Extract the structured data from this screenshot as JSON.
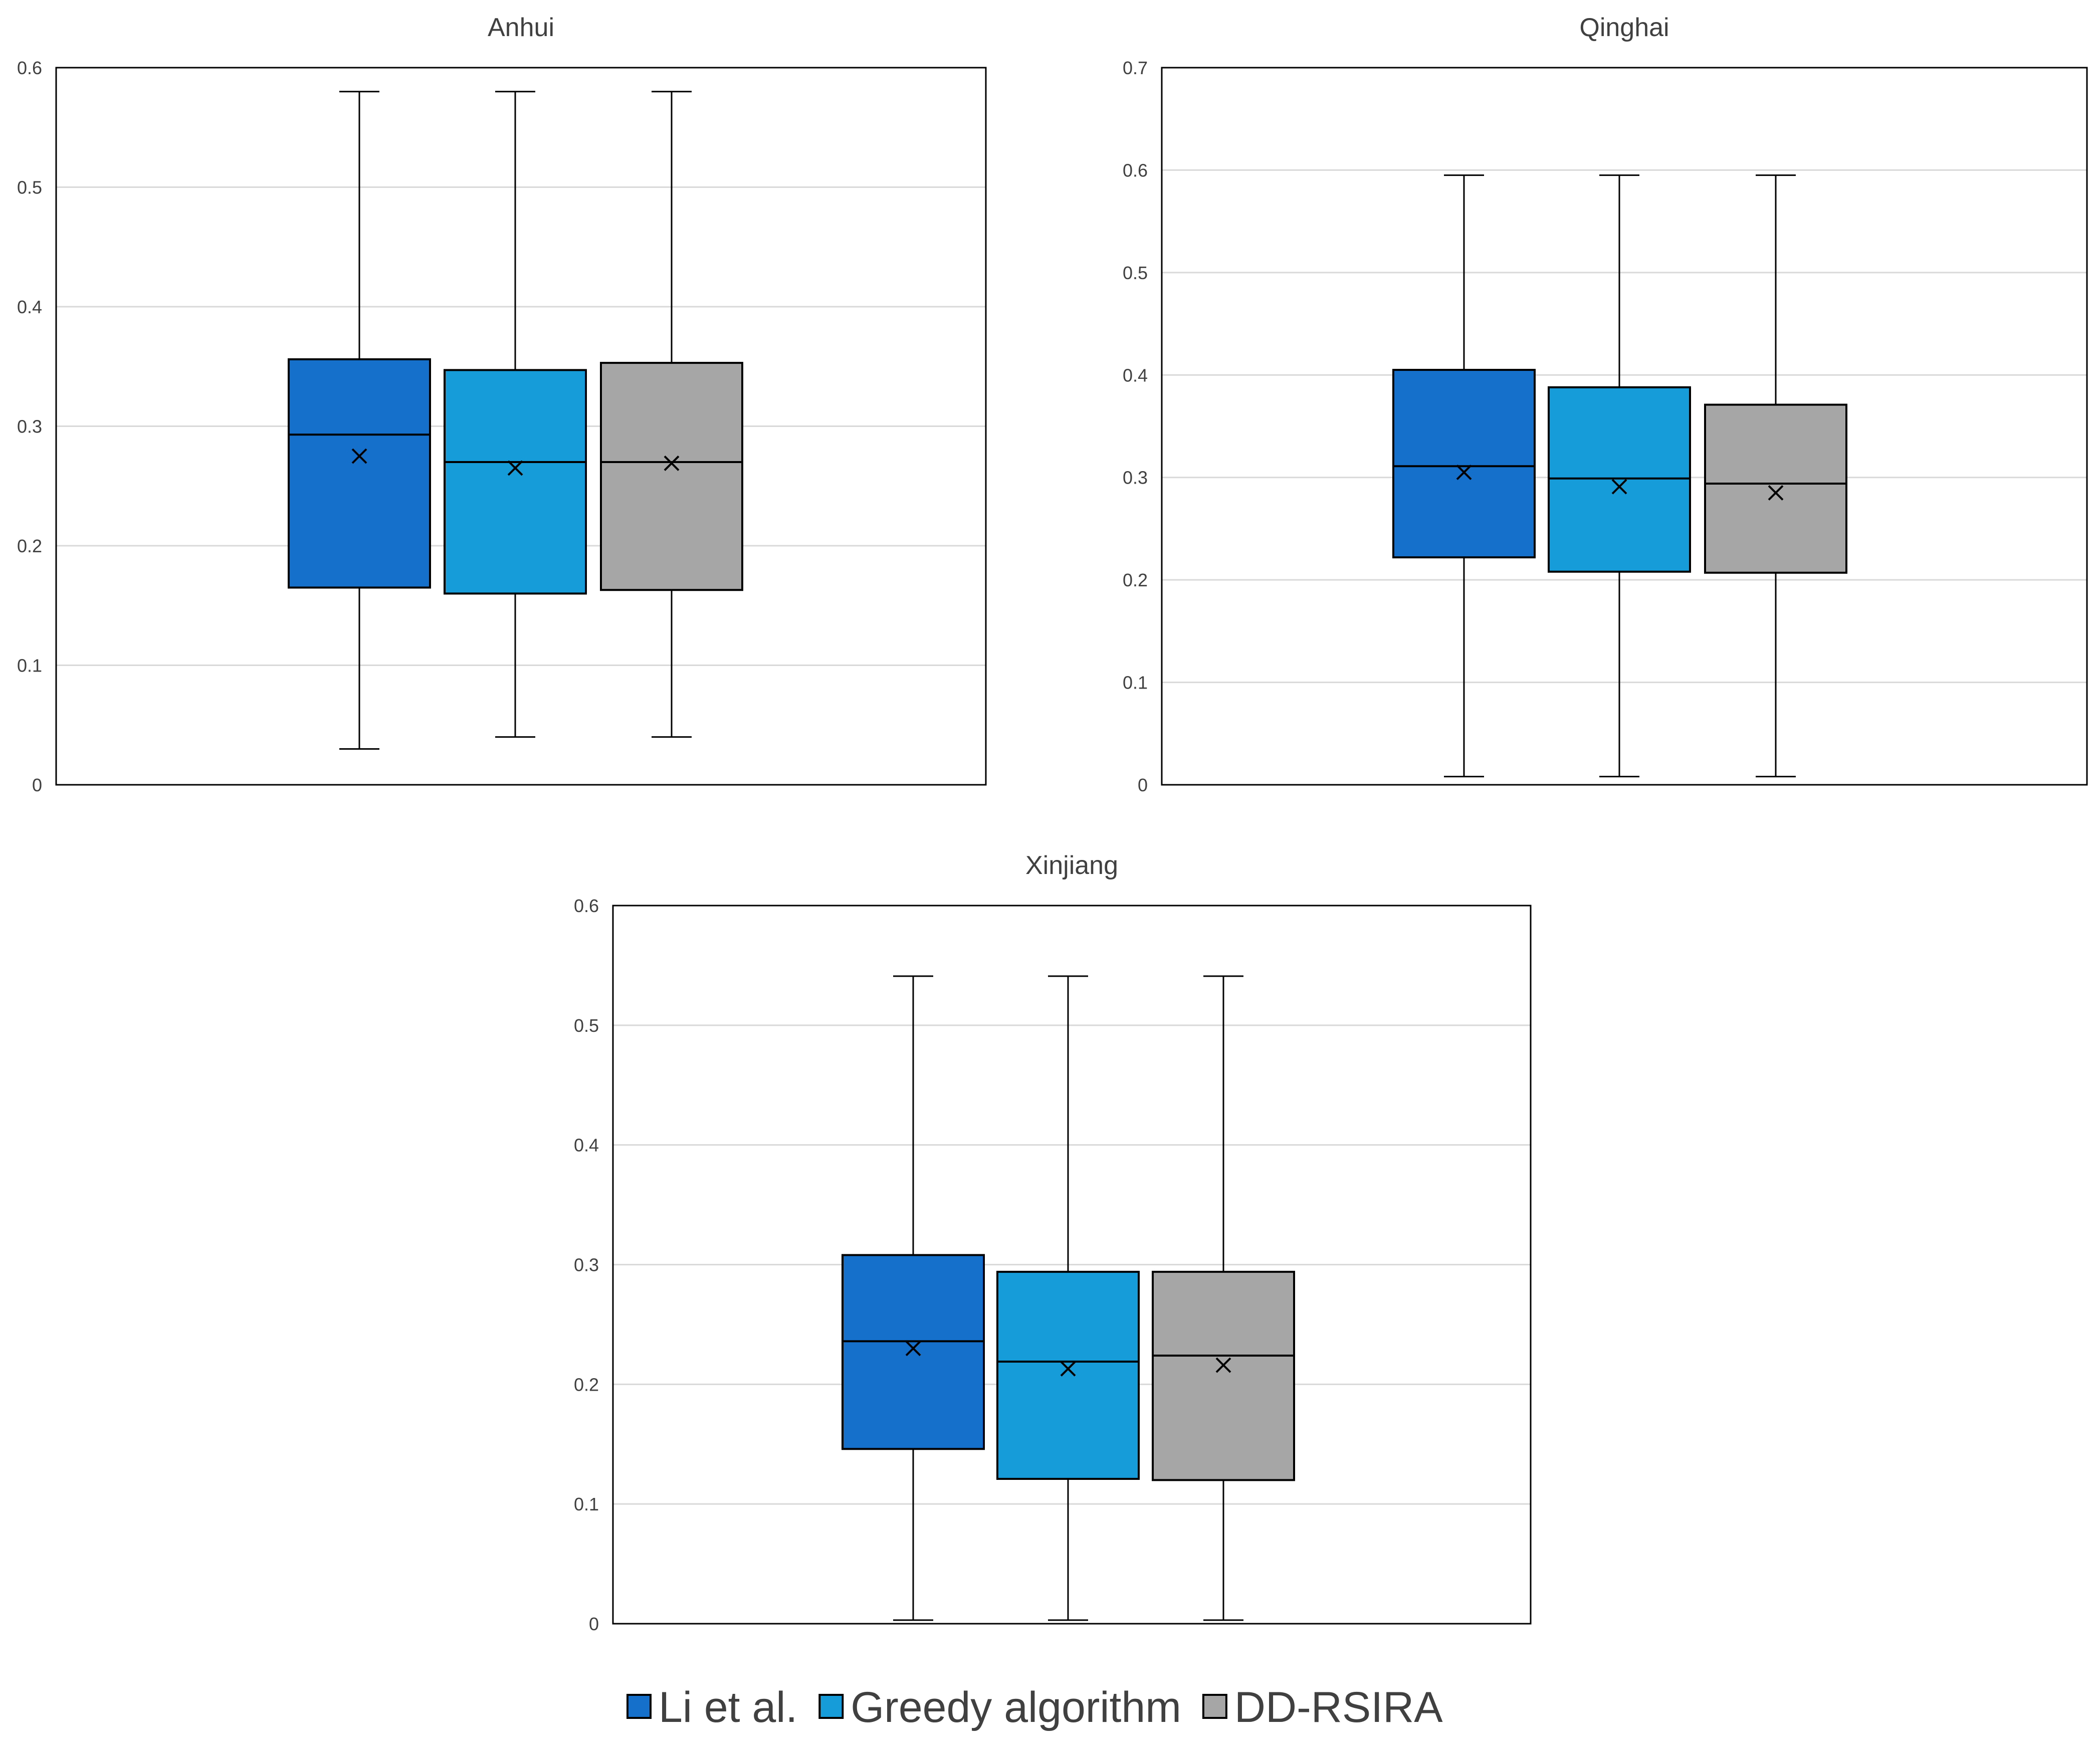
{
  "legend": [
    {
      "label": "Li et al.",
      "color": "#1570CC"
    },
    {
      "label": "Greedy algorithm",
      "color": "#169CD8"
    },
    {
      "label": "DD-RSIRA",
      "color": "#A6A6A6"
    }
  ],
  "chart_data": [
    {
      "type": "box",
      "title": "Anhui",
      "ylim": [
        0,
        0.6
      ],
      "yticks": [
        "0",
        "0.1",
        "0.2",
        "0.3",
        "0.4",
        "0.5",
        "0.6"
      ],
      "tick_step": 0.1,
      "series": [
        {
          "name": "Li et al.",
          "min": 0.03,
          "q1": 0.165,
          "median": 0.293,
          "q3": 0.356,
          "max": 0.58,
          "mean": 0.275
        },
        {
          "name": "Greedy algorithm",
          "min": 0.04,
          "q1": 0.16,
          "median": 0.27,
          "q3": 0.347,
          "max": 0.58,
          "mean": 0.265
        },
        {
          "name": "DD-RSIRA",
          "min": 0.04,
          "q1": 0.163,
          "median": 0.27,
          "q3": 0.353,
          "max": 0.58,
          "mean": 0.269
        }
      ]
    },
    {
      "type": "box",
      "title": "Qinghai",
      "ylim": [
        0,
        0.7
      ],
      "yticks": [
        "0",
        "0.1",
        "0.2",
        "0.3",
        "0.4",
        "0.5",
        "0.6",
        "0.7"
      ],
      "tick_step": 0.1,
      "series": [
        {
          "name": "Li et al.",
          "min": 0.008,
          "q1": 0.222,
          "median": 0.311,
          "q3": 0.405,
          "max": 0.595,
          "mean": 0.305
        },
        {
          "name": "Greedy algorithm",
          "min": 0.008,
          "q1": 0.208,
          "median": 0.299,
          "q3": 0.388,
          "max": 0.595,
          "mean": 0.291
        },
        {
          "name": "DD-RSIRA",
          "min": 0.008,
          "q1": 0.207,
          "median": 0.294,
          "q3": 0.371,
          "max": 0.595,
          "mean": 0.285
        }
      ]
    },
    {
      "type": "box",
      "title": "Xinjiang",
      "ylim": [
        0,
        0.6
      ],
      "yticks": [
        "0",
        "0.1",
        "0.2",
        "0.3",
        "0.4",
        "0.5",
        "0.6"
      ],
      "tick_step": 0.1,
      "series": [
        {
          "name": "Li et al.",
          "min": 0.003,
          "q1": 0.146,
          "median": 0.236,
          "q3": 0.308,
          "max": 0.541,
          "mean": 0.23
        },
        {
          "name": "Greedy algorithm",
          "min": 0.003,
          "q1": 0.121,
          "median": 0.219,
          "q3": 0.294,
          "max": 0.541,
          "mean": 0.213
        },
        {
          "name": "DD-RSIRA",
          "min": 0.003,
          "q1": 0.12,
          "median": 0.224,
          "q3": 0.294,
          "max": 0.541,
          "mean": 0.216
        }
      ]
    }
  ]
}
